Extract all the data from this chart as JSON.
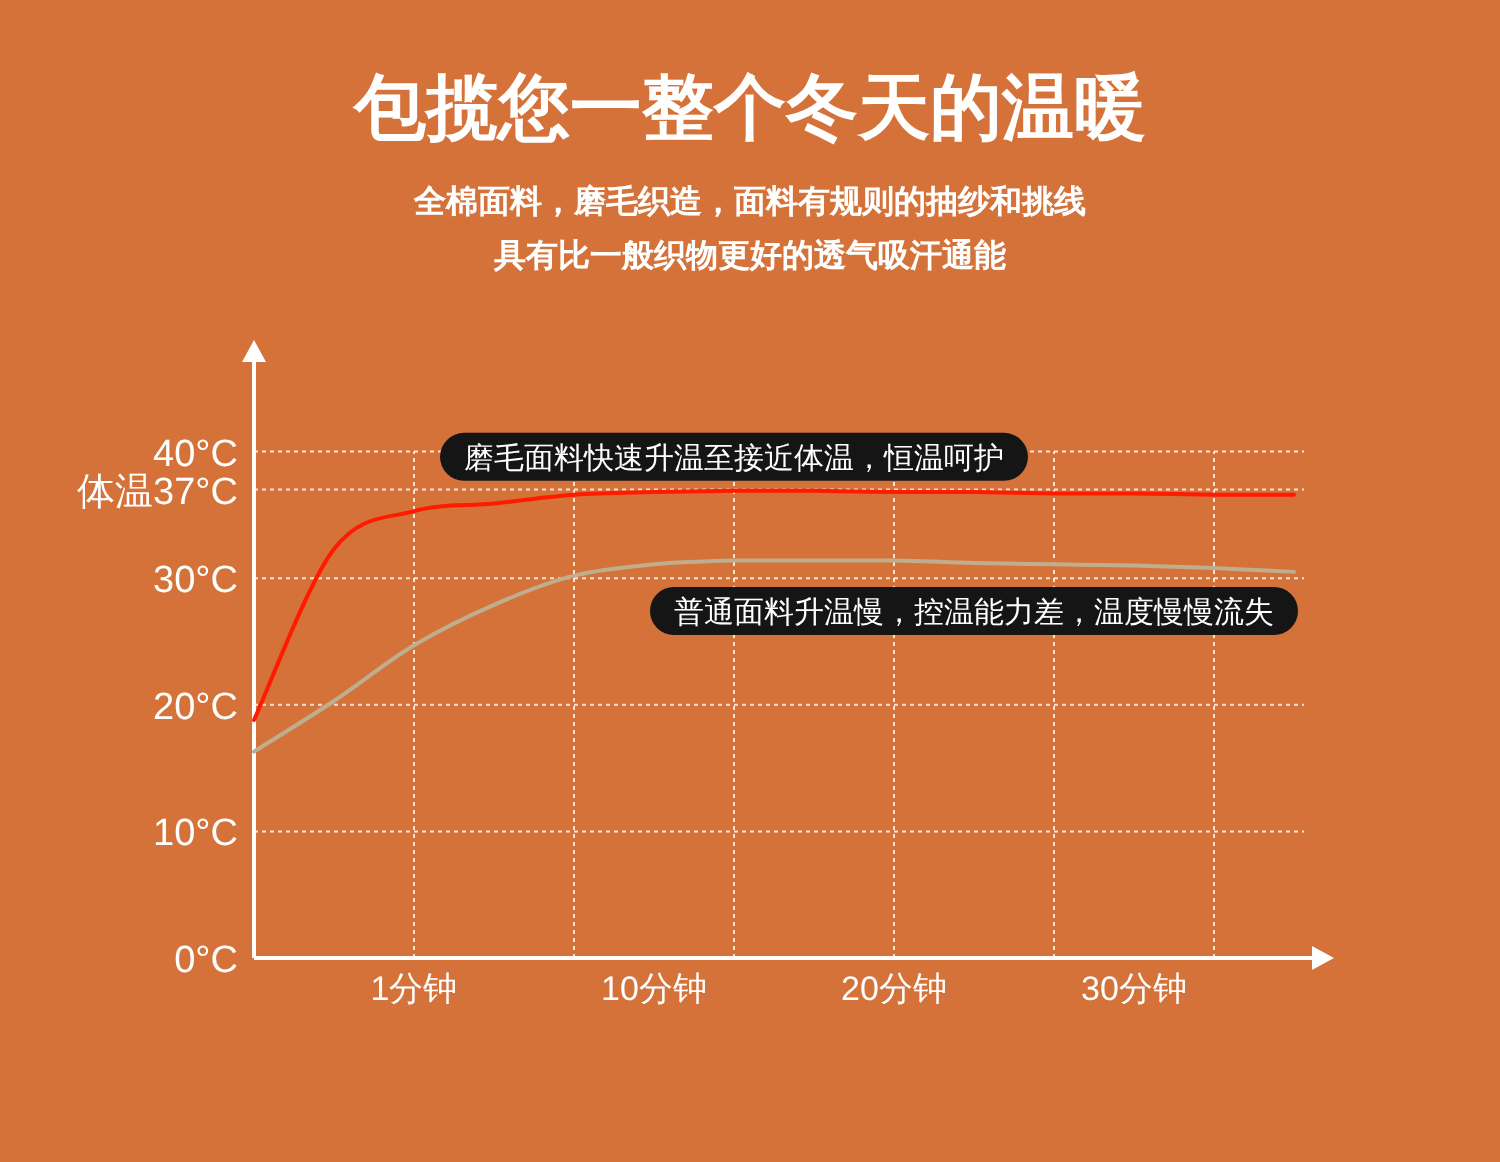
{
  "chart_data": {
    "type": "line",
    "title": "包揽您一整个冬天的温暖",
    "subtitle": "全棉面料，磨毛织造，面料有规则的抽纱和挑线具有比一般织物更好的透气吸汗通能",
    "categories": [
      null,
      null,
      "1分钟",
      null,
      null,
      "10分钟",
      null,
      null,
      "20分钟",
      null,
      null,
      "30分钟",
      null,
      null
    ],
    "series": [
      {
        "color": "#ff1a00",
        "values": [
          18.8,
          32.3,
          35.3,
          35.9,
          36.6,
          36.8,
          36.9,
          36.9,
          36.8,
          36.8,
          36.7,
          36.7,
          36.6,
          36.6
        ]
      },
      {
        "color": "#bfae8e",
        "values": [
          16.3,
          20.3,
          24.7,
          27.9,
          30.2,
          31.1,
          31.4,
          31.4,
          31.4,
          31.2,
          31.1,
          31.0,
          30.8,
          30.5
        ]
      }
    ],
    "annotations": [
      "磨毛面料快速升温至接近体温，恒温呵护",
      "普通面料升温慢，控温能力差，温度慢慢流失"
    ],
    "ylim": [
      0,
      48.5
    ],
    "yticks": [
      {
        "value": 0,
        "label": "0°C"
      },
      {
        "value": 10,
        "label": "10°C"
      },
      {
        "value": 20,
        "label": "20°C"
      },
      {
        "value": 30,
        "label": "30°C"
      },
      {
        "value": 37,
        "label": "体温37°C"
      },
      {
        "value": 40,
        "label": "40°C"
      }
    ],
    "grid": true,
    "line_style": "solid",
    "marker": "none"
  }
}
